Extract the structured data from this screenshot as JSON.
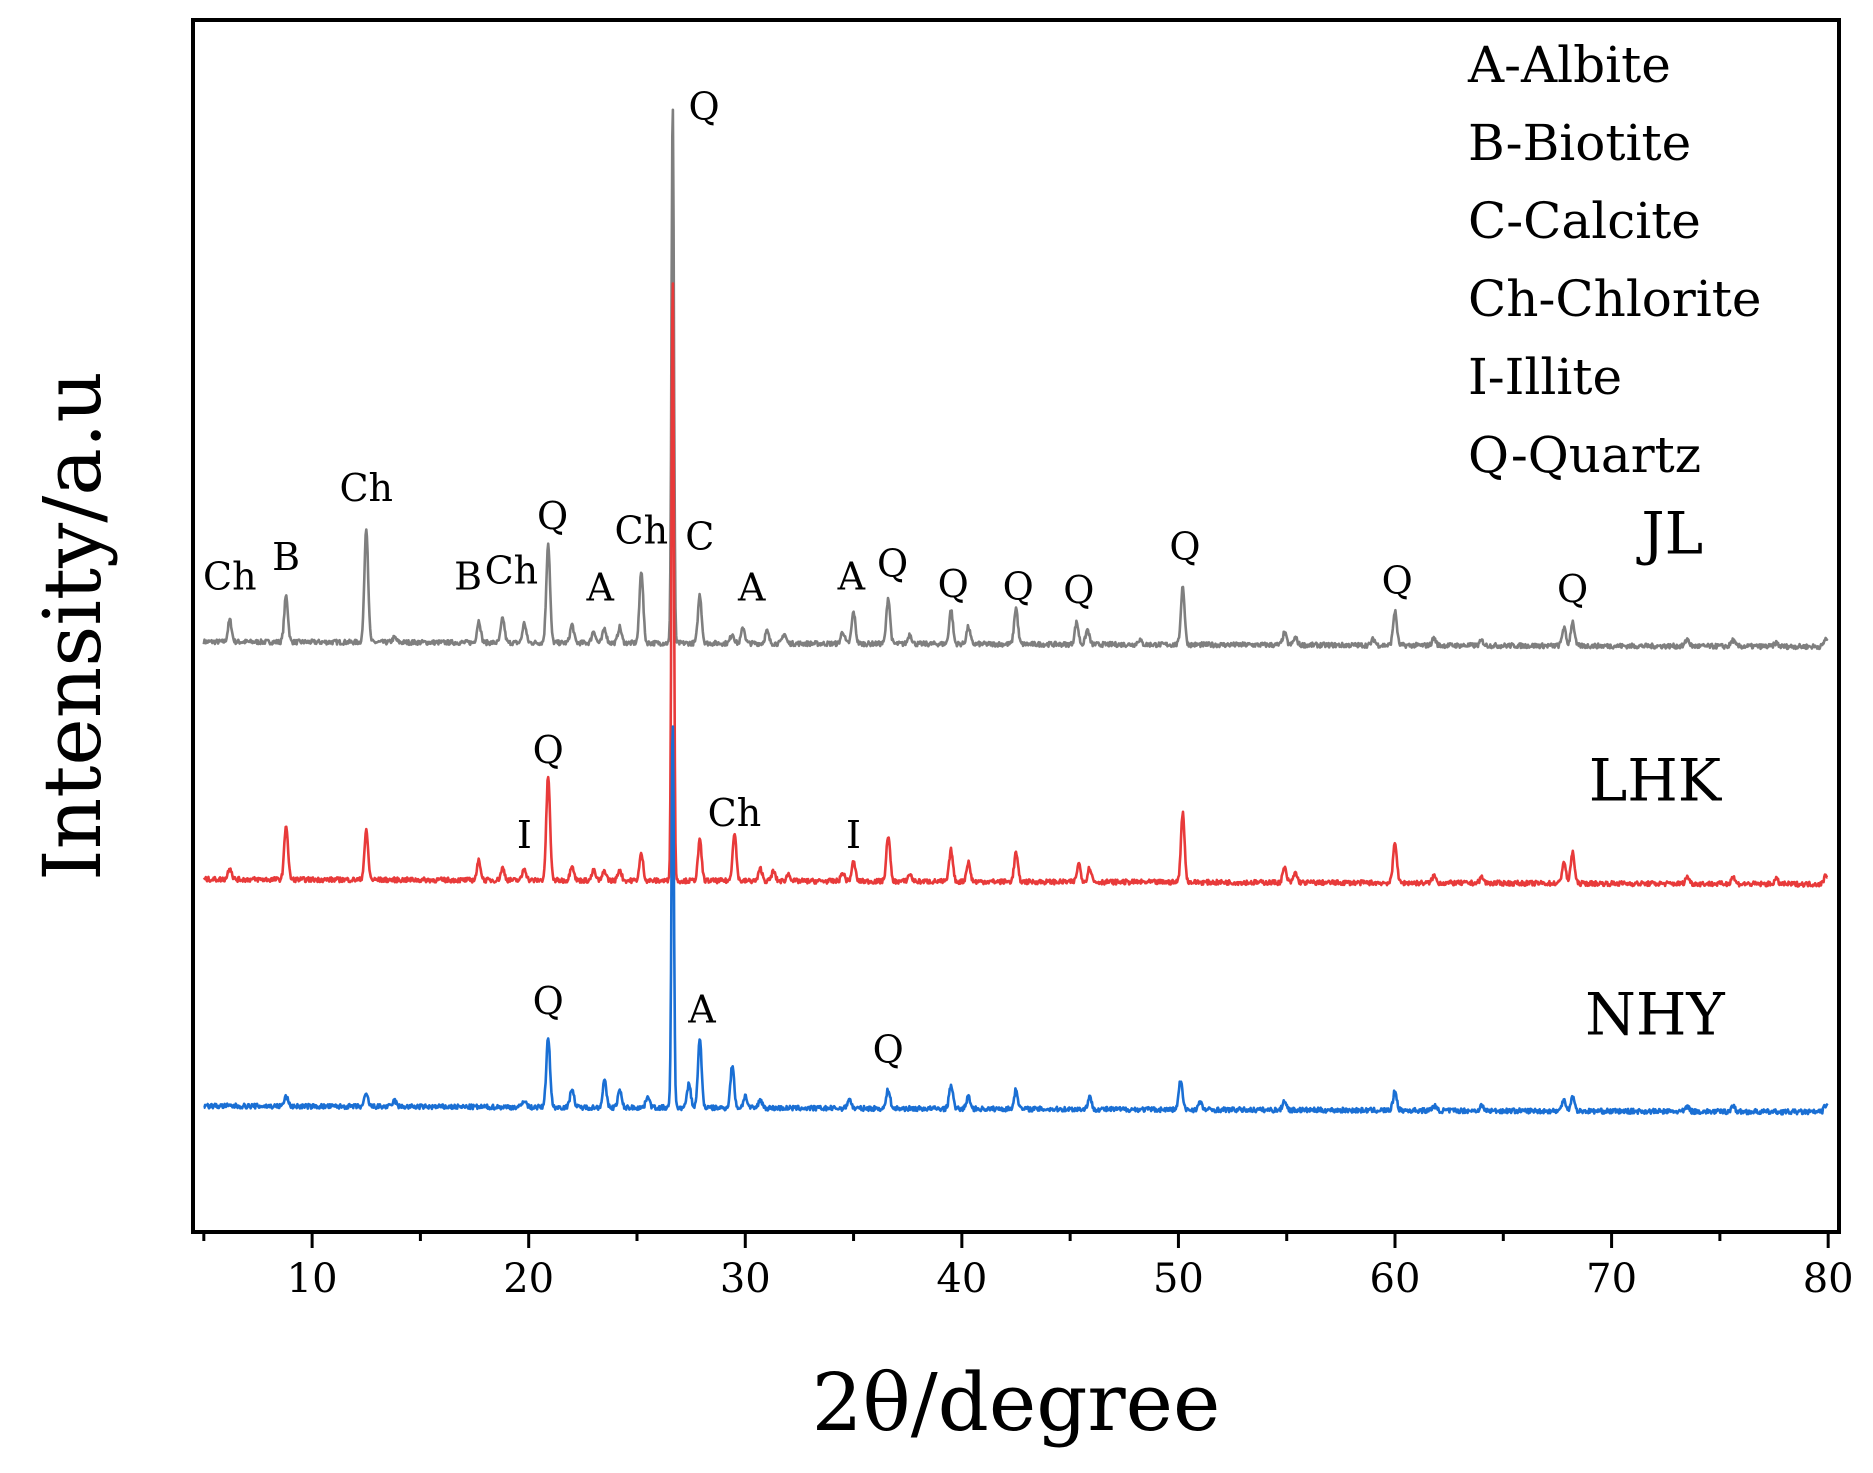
{
  "chart_data": {
    "type": "line",
    "title": "",
    "xlabel": "2θ/degree",
    "ylabel": "Intensity/a.u",
    "xlim": [
      4.5,
      80.5
    ],
    "ylim": [
      0,
      1
    ],
    "grid": false,
    "legend_position": "top-right",
    "x_ticks": [
      10,
      20,
      30,
      40,
      50,
      60,
      70,
      80
    ],
    "x_tick_labels": [
      "10",
      "20",
      "30",
      "40",
      "50",
      "60",
      "70",
      "80"
    ],
    "legend": [
      "A-Albite",
      "B-Biotite",
      "C-Calcite",
      "Ch-Chlorite",
      "I-Illite",
      "Q-Quartz"
    ],
    "series": [
      {
        "name": "JL",
        "color": "#7f7f7f",
        "baseline": 0.487,
        "tilt": 0.004,
        "peaks": [
          [
            6.2,
            0.018
          ],
          [
            8.8,
            0.038
          ],
          [
            12.5,
            0.095
          ],
          [
            13.8,
            0.004
          ],
          [
            17.7,
            0.018
          ],
          [
            18.8,
            0.02
          ],
          [
            19.8,
            0.016
          ],
          [
            20.9,
            0.082
          ],
          [
            22.0,
            0.015
          ],
          [
            23.0,
            0.01
          ],
          [
            23.5,
            0.012
          ],
          [
            24.2,
            0.013
          ],
          [
            25.2,
            0.06
          ],
          [
            26.65,
            0.447
          ],
          [
            27.9,
            0.04
          ],
          [
            29.4,
            0.008
          ],
          [
            29.9,
            0.013
          ],
          [
            31.0,
            0.01
          ],
          [
            31.8,
            0.008
          ],
          [
            34.5,
            0.01
          ],
          [
            35.0,
            0.026
          ],
          [
            36.6,
            0.038
          ],
          [
            37.6,
            0.008
          ],
          [
            39.5,
            0.028
          ],
          [
            40.3,
            0.014
          ],
          [
            42.5,
            0.03
          ],
          [
            45.3,
            0.018
          ],
          [
            45.8,
            0.012
          ],
          [
            48.2,
            0.004
          ],
          [
            50.2,
            0.048
          ],
          [
            54.9,
            0.01
          ],
          [
            55.4,
            0.006
          ],
          [
            59.0,
            0.005
          ],
          [
            60.0,
            0.028
          ],
          [
            61.8,
            0.006
          ],
          [
            64.0,
            0.004
          ],
          [
            67.8,
            0.015
          ],
          [
            68.2,
            0.02
          ],
          [
            73.5,
            0.006
          ],
          [
            75.6,
            0.005
          ],
          [
            77.6,
            0.003
          ],
          [
            79.9,
            0.007
          ]
        ]
      },
      {
        "name": "LHK",
        "color": "#e83a3a",
        "baseline": 0.291,
        "tilt": 0.004,
        "peaks": [
          [
            6.2,
            0.01
          ],
          [
            8.8,
            0.045
          ],
          [
            12.5,
            0.04
          ],
          [
            17.7,
            0.016
          ],
          [
            18.8,
            0.01
          ],
          [
            19.8,
            0.01
          ],
          [
            20.9,
            0.086
          ],
          [
            22.0,
            0.013
          ],
          [
            23.0,
            0.008
          ],
          [
            23.5,
            0.008
          ],
          [
            24.2,
            0.009
          ],
          [
            25.2,
            0.022
          ],
          [
            26.65,
            0.5
          ],
          [
            27.9,
            0.033
          ],
          [
            29.5,
            0.04
          ],
          [
            30.7,
            0.01
          ],
          [
            31.3,
            0.008
          ],
          [
            32.0,
            0.006
          ],
          [
            34.5,
            0.007
          ],
          [
            35.0,
            0.016
          ],
          [
            36.6,
            0.038
          ],
          [
            37.6,
            0.006
          ],
          [
            39.5,
            0.026
          ],
          [
            40.3,
            0.016
          ],
          [
            42.5,
            0.024
          ],
          [
            45.4,
            0.015
          ],
          [
            45.9,
            0.012
          ],
          [
            50.2,
            0.057
          ],
          [
            54.9,
            0.012
          ],
          [
            55.4,
            0.008
          ],
          [
            60.0,
            0.034
          ],
          [
            61.8,
            0.006
          ],
          [
            64.0,
            0.005
          ],
          [
            67.8,
            0.018
          ],
          [
            68.2,
            0.026
          ],
          [
            73.5,
            0.006
          ],
          [
            75.6,
            0.006
          ],
          [
            77.6,
            0.004
          ],
          [
            79.9,
            0.008
          ]
        ]
      },
      {
        "name": "NHY",
        "color": "#1a6fd4",
        "baseline": 0.104,
        "tilt": 0.005,
        "peaks": [
          [
            8.8,
            0.008
          ],
          [
            12.5,
            0.01
          ],
          [
            13.8,
            0.005
          ],
          [
            19.8,
            0.006
          ],
          [
            20.9,
            0.058
          ],
          [
            22.0,
            0.016
          ],
          [
            23.5,
            0.022
          ],
          [
            24.2,
            0.014
          ],
          [
            25.5,
            0.01
          ],
          [
            26.65,
            0.318
          ],
          [
            27.4,
            0.02
          ],
          [
            27.9,
            0.056
          ],
          [
            29.4,
            0.035
          ],
          [
            30.0,
            0.01
          ],
          [
            30.7,
            0.007
          ],
          [
            34.8,
            0.008
          ],
          [
            36.6,
            0.016
          ],
          [
            39.5,
            0.02
          ],
          [
            40.3,
            0.01
          ],
          [
            42.5,
            0.016
          ],
          [
            45.9,
            0.01
          ],
          [
            50.1,
            0.024
          ],
          [
            51.0,
            0.006
          ],
          [
            54.9,
            0.008
          ],
          [
            60.0,
            0.016
          ],
          [
            61.8,
            0.004
          ],
          [
            64.0,
            0.004
          ],
          [
            67.8,
            0.01
          ],
          [
            68.2,
            0.012
          ],
          [
            73.5,
            0.004
          ],
          [
            75.6,
            0.005
          ],
          [
            79.9,
            0.006
          ]
        ]
      }
    ],
    "series_labels": [
      {
        "text": "JL",
        "x": 72.8,
        "y": 0.56
      },
      {
        "text": "LHK",
        "x": 72.0,
        "y": 0.356
      },
      {
        "text": "NHY",
        "x": 72.0,
        "y": 0.163
      }
    ],
    "annotations": [
      {
        "text": "Ch",
        "x": 6.2,
        "y": 0.53
      },
      {
        "text": "B",
        "x": 8.8,
        "y": 0.546
      },
      {
        "text": "Ch",
        "x": 12.5,
        "y": 0.603
      },
      {
        "text": "B",
        "x": 17.2,
        "y": 0.53
      },
      {
        "text": "Ch",
        "x": 19.2,
        "y": 0.535
      },
      {
        "text": "Q",
        "x": 21.1,
        "y": 0.58
      },
      {
        "text": "A",
        "x": 23.3,
        "y": 0.521
      },
      {
        "text": "Ch",
        "x": 25.2,
        "y": 0.568
      },
      {
        "text": "Q",
        "x": 28.1,
        "y": 0.918
      },
      {
        "text": "C",
        "x": 27.9,
        "y": 0.563
      },
      {
        "text": "A",
        "x": 30.3,
        "y": 0.521
      },
      {
        "text": "A",
        "x": 34.9,
        "y": 0.53
      },
      {
        "text": "Q",
        "x": 36.8,
        "y": 0.541
      },
      {
        "text": "Q",
        "x": 39.6,
        "y": 0.524
      },
      {
        "text": "Q",
        "x": 42.6,
        "y": 0.522
      },
      {
        "text": "Q",
        "x": 45.4,
        "y": 0.519
      },
      {
        "text": "Q",
        "x": 50.3,
        "y": 0.555
      },
      {
        "text": "Q",
        "x": 60.1,
        "y": 0.527
      },
      {
        "text": "Q",
        "x": 68.2,
        "y": 0.52
      },
      {
        "text": "Q",
        "x": 20.9,
        "y": 0.387
      },
      {
        "text": "I",
        "x": 19.8,
        "y": 0.317
      },
      {
        "text": "Ch",
        "x": 29.5,
        "y": 0.335
      },
      {
        "text": "I",
        "x": 35.0,
        "y": 0.317
      },
      {
        "text": "Q",
        "x": 20.9,
        "y": 0.18
      },
      {
        "text": "A",
        "x": 28.0,
        "y": 0.173
      },
      {
        "text": "Q",
        "x": 36.6,
        "y": 0.14
      }
    ]
  }
}
